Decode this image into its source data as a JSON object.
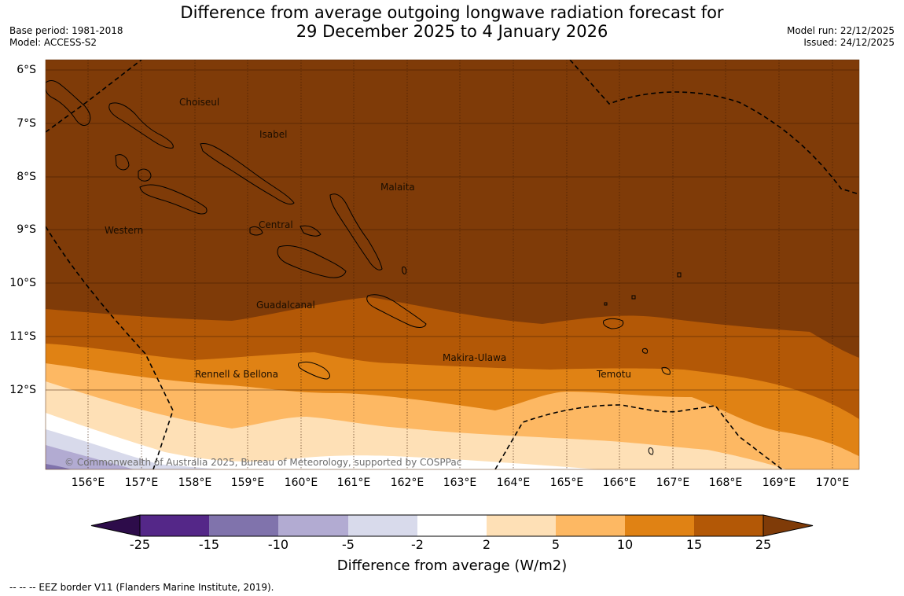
{
  "title": {
    "line1": "Difference from average outgoing longwave radiation forecast for",
    "line2": "29 December 2025 to 4 January 2026"
  },
  "meta_left": {
    "base_period": "Base period: 1981-2018",
    "model": "Model: ACCESS-S2"
  },
  "meta_right": {
    "model_run": "Model run: 22/12/2025",
    "issued": "Issued: 24/12/2025"
  },
  "map": {
    "lat_labels": [
      "6°S",
      "7°S",
      "8°S",
      "9°S",
      "10°S",
      "11°S",
      "12°S"
    ],
    "lon_labels": [
      "156°E",
      "157°E",
      "158°E",
      "159°E",
      "160°E",
      "161°E",
      "162°E",
      "163°E",
      "164°E",
      "165°E",
      "166°E",
      "167°E",
      "168°E",
      "169°E",
      "170°E"
    ],
    "regions": {
      "choiseul": "Choiseul",
      "isabel": "Isabel",
      "malaita": "Malaita",
      "western": "Western",
      "central": "Central",
      "guadalcanal": "Guadalcanal",
      "makira_ulawa": "Makira-Ulawa",
      "rennell_bellona": "Rennell & Bellona",
      "temotu": "Temotu"
    },
    "copyright": "© Commonwealth of Australia 2025, Bureau of Meteorology, supported by COSPPac"
  },
  "colorbar": {
    "labels": [
      "-25",
      "-15",
      "-10",
      "-5",
      "-2",
      "2",
      "5",
      "10",
      "15",
      "25"
    ],
    "title": "Difference from average (W/m2)",
    "colors": {
      "below": "#2d0c4a",
      "n25_15": "#542788",
      "n15_10": "#8073ac",
      "n10_5": "#b2abd2",
      "n5_2": "#d8daeb",
      "n2_2": "#ffffff",
      "p2_5": "#fee0b6",
      "p5_10": "#fdb863",
      "p10_15": "#e08214",
      "p15_25": "#b35806",
      "above": "#7f3b08"
    }
  },
  "footnote": "--  --  -- EEZ border V11 (Flanders Marine Institute, 2019)."
}
